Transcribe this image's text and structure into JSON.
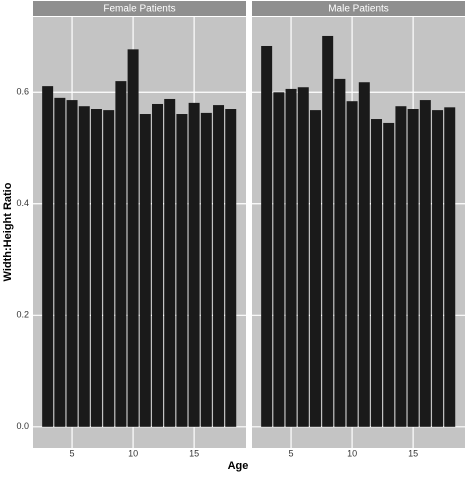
{
  "chart_data": [
    {
      "type": "bar",
      "title": "Female Patients",
      "x_label": "Age",
      "y_label": "Width:Height Ratio",
      "x": [
        3,
        4,
        5,
        6,
        7,
        8,
        9,
        10,
        11,
        12,
        13,
        14,
        15,
        16,
        17,
        18
      ],
      "values": [
        0.611,
        0.59,
        0.586,
        0.575,
        0.57,
        0.568,
        0.62,
        0.677,
        0.561,
        0.579,
        0.588,
        0.561,
        0.581,
        0.563,
        0.577,
        0.57
      ],
      "color": "#1a1a1a",
      "xlim": [
        1.8,
        19.25
      ],
      "xticks": [
        5,
        10,
        15
      ],
      "ylim": [
        -0.038,
        0.735
      ],
      "yticks": [
        {
          "value": 0,
          "label": "0.0"
        },
        0.2,
        0.4,
        0.6
      ],
      "grid": true
    },
    {
      "type": "bar",
      "title": "Male Patients",
      "x": [
        3,
        4,
        5,
        6,
        7,
        8,
        9,
        10,
        11,
        12,
        13,
        14,
        15,
        16,
        17,
        18
      ],
      "values": [
        0.683,
        0.6,
        0.606,
        0.609,
        0.568,
        0.701,
        0.624,
        0.584,
        0.618,
        0.552,
        0.545,
        0.575,
        0.57,
        0.586,
        0.568,
        0.573
      ],
      "color": "#1a1a1a",
      "xlim": [
        1.8,
        19.25
      ],
      "xticks": [
        5,
        10,
        15
      ],
      "ylim": [
        -0.038,
        0.735
      ],
      "yticks": [
        {
          "value": 0,
          "label": "0.0"
        },
        0.2,
        0.4,
        0.6
      ],
      "grid": true
    }
  ]
}
